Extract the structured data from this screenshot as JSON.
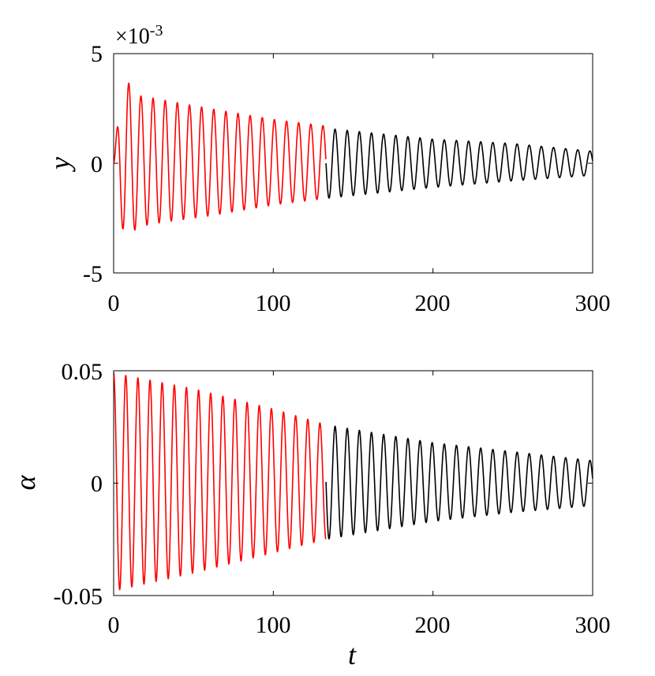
{
  "chart_data": [
    {
      "type": "line",
      "ylabel": "y",
      "xlabel": "",
      "xlim": [
        0,
        300
      ],
      "ylim": [
        -0.005,
        0.005
      ],
      "xticks": [
        0,
        100,
        200,
        300
      ],
      "x_tick_labels": [
        "0",
        "100",
        "200",
        "300"
      ],
      "y_tick_labels": [
        "-5",
        "0",
        "5"
      ],
      "yticks": [
        -0.005,
        0,
        0.005
      ],
      "exponent_base": "×10",
      "exponent_power": "-3",
      "grid": false,
      "series": [
        {
          "color": "#ff0000",
          "x_start": 0,
          "x_end": 133,
          "period": 7.6,
          "initial_value": 0,
          "envelope_t": [
            0,
            4,
            8,
            15,
            30,
            60,
            100,
            133
          ],
          "envelope_upper": [
            0.0,
            0.003,
            0.0038,
            0.0031,
            0.0029,
            0.0025,
            0.002,
            0.0017
          ],
          "envelope_lower": [
            0.0,
            -0.0026,
            -0.0035,
            -0.0029,
            -0.0027,
            -0.0024,
            -0.0019,
            -0.0016
          ]
        },
        {
          "color": "#000000",
          "x_start": 133,
          "x_end": 300,
          "period": 7.6,
          "envelope_t": [
            133,
            200,
            250,
            300
          ],
          "envelope_upper": [
            0.0016,
            0.0011,
            0.0009,
            0.00055
          ],
          "envelope_lower": [
            -0.0016,
            -0.0011,
            -0.0008,
            -0.00055
          ]
        }
      ]
    },
    {
      "type": "line",
      "ylabel": "α",
      "xlabel": "t",
      "xlim": [
        0,
        300
      ],
      "ylim": [
        -0.05,
        0.05
      ],
      "xticks": [
        0,
        100,
        200,
        300
      ],
      "x_tick_labels": [
        "0",
        "100",
        "200",
        "300"
      ],
      "y_tick_labels": [
        "-0.05",
        "0",
        "0.05"
      ],
      "yticks": [
        -0.05,
        0,
        0.05
      ],
      "grid": false,
      "series": [
        {
          "color": "#ff0000",
          "x_start": 0,
          "x_end": 133,
          "period": 7.6,
          "initial_value": 0.05,
          "envelope_t": [
            0,
            50,
            100,
            133
          ],
          "envelope_upper": [
            0.049,
            0.042,
            0.033,
            0.026
          ],
          "envelope_lower": [
            -0.048,
            -0.04,
            -0.031,
            -0.025
          ]
        },
        {
          "color": "#000000",
          "x_start": 133,
          "x_end": 300,
          "period": 7.6,
          "envelope_t": [
            133,
            200,
            250,
            300
          ],
          "envelope_upper": [
            0.026,
            0.018,
            0.014,
            0.01
          ],
          "envelope_lower": [
            -0.025,
            -0.017,
            -0.013,
            -0.01
          ]
        }
      ]
    }
  ]
}
